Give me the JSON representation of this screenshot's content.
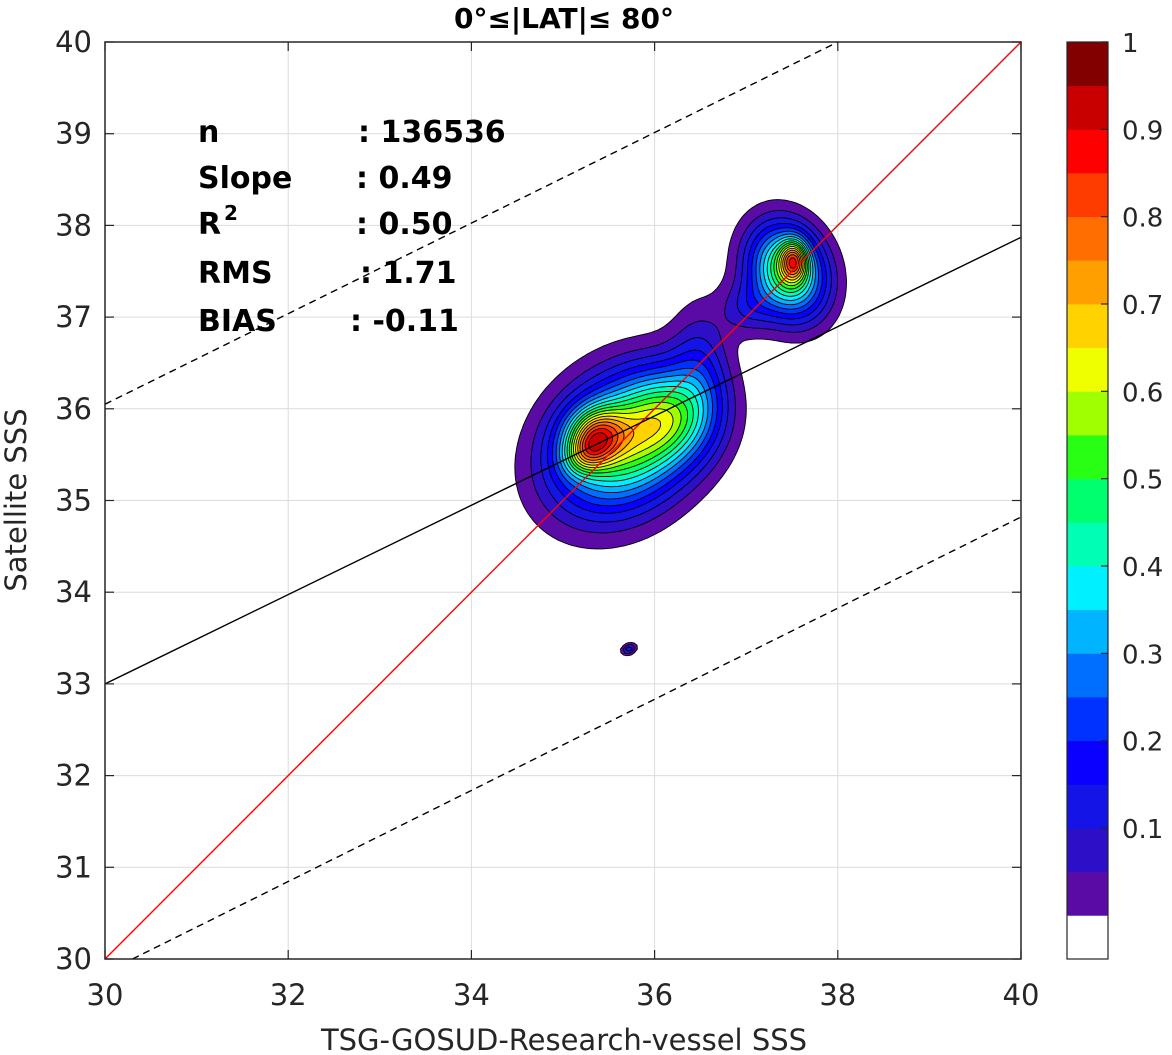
{
  "chart_data": {
    "type": "contour",
    "title": "0°≤|LAT|≤ 80°",
    "xlabel": "TSG-GOSUD-Research-vessel SSS",
    "ylabel": "Satellite SSS",
    "xlim": [
      30,
      40
    ],
    "ylim": [
      30,
      40
    ],
    "xticks": [
      "30",
      "32",
      "34",
      "36",
      "38",
      "40"
    ],
    "yticks": [
      "30",
      "31",
      "32",
      "33",
      "34",
      "35",
      "36",
      "37",
      "38",
      "39",
      "40"
    ],
    "grid": true,
    "stats": [
      {
        "label": "n",
        "sep": ": 136536"
      },
      {
        "label": "Slope",
        "sep": ": 0.49"
      },
      {
        "label": "R",
        "sup": "2",
        "sep": ": 0.50"
      },
      {
        "label": "RMS",
        "sep": ": 1.71"
      },
      {
        "label": "BIAS",
        "sep": ": -0.11"
      }
    ],
    "n": 136536,
    "slope": 0.49,
    "r2": 0.5,
    "rms": 1.71,
    "bias": -0.11,
    "reference_lines": [
      {
        "name": "1:1",
        "color": "#ff0000",
        "style": "solid",
        "x": [
          30,
          40
        ],
        "y": [
          30,
          40
        ]
      },
      {
        "name": "fit",
        "color": "#000000",
        "style": "solid",
        "x": [
          30,
          40
        ],
        "y": [
          33.0,
          37.87
        ]
      },
      {
        "name": "upper bound",
        "color": "#000000",
        "style": "dashed",
        "x": [
          30,
          38.0
        ],
        "y": [
          36.05,
          40.0
        ]
      },
      {
        "name": "lower bound",
        "color": "#000000",
        "style": "dashed",
        "x": [
          30.3,
          40
        ],
        "y": [
          30.0,
          34.82
        ]
      }
    ],
    "density_blobs": [
      {
        "x": 35.65,
        "y": 35.62,
        "sx": 0.58,
        "sy": 0.46,
        "rot": 42,
        "w": 0.62
      },
      {
        "x": 35.35,
        "y": 35.72,
        "sx": 0.22,
        "sy": 0.2,
        "rot": 30,
        "w": 0.42
      },
      {
        "x": 35.25,
        "y": 35.5,
        "sx": 0.18,
        "sy": 0.14,
        "rot": 30,
        "w": 0.22
      },
      {
        "x": 36.2,
        "y": 35.92,
        "sx": 0.36,
        "sy": 0.34,
        "rot": 45,
        "w": 0.32
      },
      {
        "x": 36.5,
        "y": 36.5,
        "sx": 0.22,
        "sy": 0.46,
        "rot": 0,
        "w": 0.14
      },
      {
        "x": 37.0,
        "y": 37.1,
        "sx": 0.2,
        "sy": 0.2,
        "rot": 45,
        "w": 0.12
      },
      {
        "x": 37.45,
        "y": 37.5,
        "sx": 0.28,
        "sy": 0.36,
        "rot": 20,
        "w": 0.62
      },
      {
        "x": 37.52,
        "y": 37.62,
        "sx": 0.1,
        "sy": 0.15,
        "rot": 0,
        "w": 0.42
      },
      {
        "x": 35.72,
        "y": 33.38,
        "sx": 0.06,
        "sy": 0.04,
        "rot": 20,
        "w": 0.2
      }
    ],
    "colorbar": {
      "ticks": [
        "0.1",
        "0.2",
        "0.3",
        "0.4",
        "0.5",
        "0.6",
        "0.7",
        "0.8",
        "0.9",
        "1"
      ],
      "levels": [
        0,
        0.05,
        0.1,
        0.15,
        0.2,
        0.25,
        0.3,
        0.35,
        0.4,
        0.45,
        0.5,
        0.55,
        0.6,
        0.65,
        0.7,
        0.75,
        0.8,
        0.85,
        0.9,
        0.95,
        1.0
      ],
      "colors": [
        "#ffffff",
        "#5a0aa5",
        "#2d0fc8",
        "#1414e6",
        "#0a00ff",
        "#0032ff",
        "#006eff",
        "#00b4ff",
        "#00f0ff",
        "#00ffb4",
        "#00ff6e",
        "#28ff14",
        "#a0ff00",
        "#f0ff00",
        "#ffd200",
        "#ffa000",
        "#ff6e00",
        "#ff3c00",
        "#ff0000",
        "#c80000",
        "#820000"
      ]
    }
  }
}
